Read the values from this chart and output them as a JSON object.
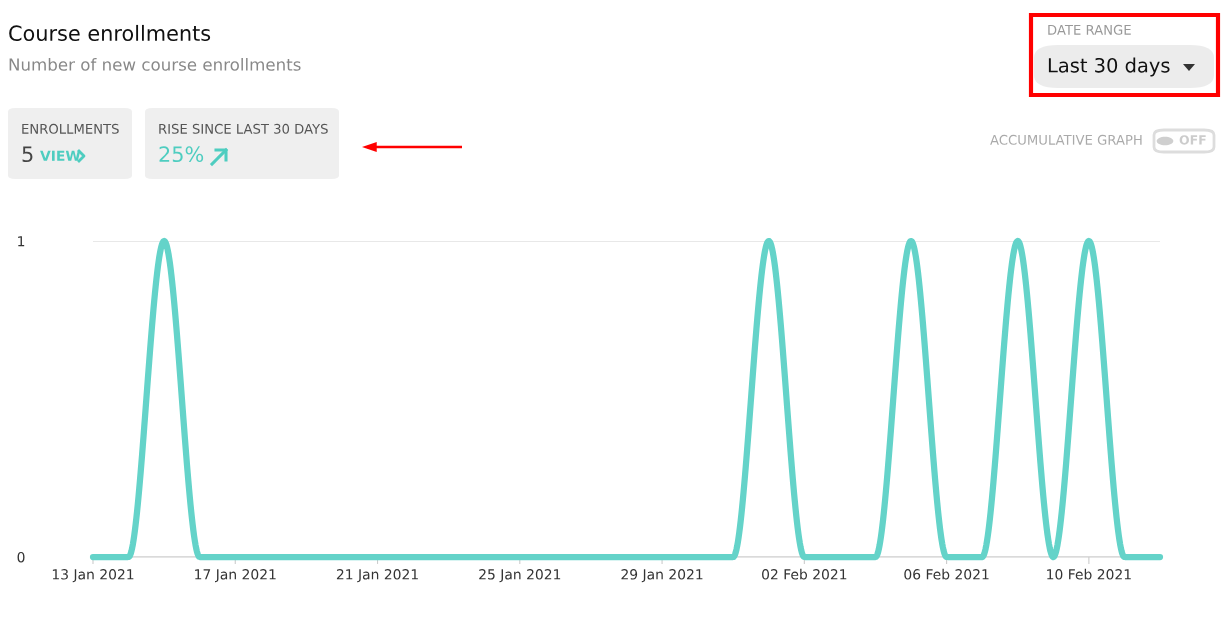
{
  "chart_data": {
    "type": "line",
    "title": "Course enrollments",
    "subtitle": "Number of new course enrollments",
    "x": [
      "2021-01-13",
      "2021-01-14",
      "2021-01-15",
      "2021-01-16",
      "2021-01-17",
      "2021-01-18",
      "2021-01-19",
      "2021-01-20",
      "2021-01-21",
      "2021-01-22",
      "2021-01-23",
      "2021-01-24",
      "2021-01-25",
      "2021-01-26",
      "2021-01-27",
      "2021-01-28",
      "2021-01-29",
      "2021-01-30",
      "2021-01-31",
      "2021-02-01",
      "2021-02-02",
      "2021-02-03",
      "2021-02-04",
      "2021-02-05",
      "2021-02-06",
      "2021-02-07",
      "2021-02-08",
      "2021-02-09",
      "2021-02-10",
      "2021-02-11",
      "2021-02-12"
    ],
    "series": [
      {
        "color": "#64d3c9",
        "values": [
          0,
          0,
          1,
          0,
          0,
          0,
          0,
          0,
          0,
          0,
          0,
          0,
          0,
          0,
          0,
          0,
          0,
          0,
          0,
          1,
          0,
          0,
          0,
          1,
          0,
          0,
          1,
          0,
          1,
          0,
          0
        ]
      }
    ],
    "xlim": [
      "2021-01-13",
      "2021-02-12"
    ],
    "xticks": [
      {
        "value": "2021-01-13",
        "label": "13 Jan 2021"
      },
      {
        "value": "2021-01-17",
        "label": "17 Jan 2021"
      },
      {
        "value": "2021-01-21",
        "label": "21 Jan 2021"
      },
      {
        "value": "2021-01-25",
        "label": "25 Jan 2021"
      },
      {
        "value": "2021-01-29",
        "label": "29 Jan 2021"
      },
      {
        "value": "2021-02-02",
        "label": "02 Feb 2021"
      },
      {
        "value": "2021-02-06",
        "label": "06 Feb 2021"
      },
      {
        "value": "2021-02-10",
        "label": "10 Feb 2021"
      }
    ],
    "ylim": [
      0,
      1
    ],
    "yticks": [
      0,
      1
    ],
    "grid": "y",
    "marker": "none",
    "line_style": "solid",
    "legend": false,
    "annotations": [
      "DATE RANGE",
      "Last 30 days",
      "ENROLLMENTS",
      "5",
      "VIEW",
      "RISE SINCE LAST 30 DAYS",
      "25%",
      "ACCUMULATIVE GRAPH",
      "OFF"
    ]
  }
}
